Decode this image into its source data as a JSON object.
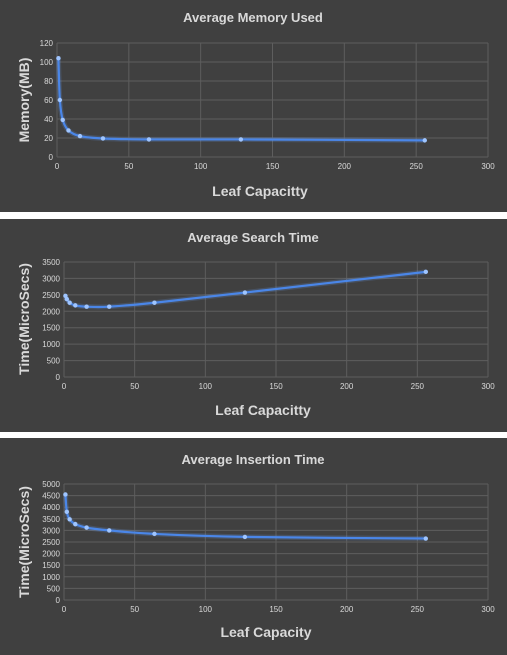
{
  "chart_data": [
    {
      "type": "line",
      "title": "Average Memory Used",
      "xlabel": "Leaf Capacitty",
      "ylabel": "Memory(MB)",
      "xlim": [
        0,
        300
      ],
      "ylim": [
        0,
        120
      ],
      "x_ticks": [
        "0",
        "50",
        "100",
        "150",
        "200",
        "250",
        "300"
      ],
      "y_ticks": [
        "0",
        "20",
        "40",
        "60",
        "80",
        "100",
        "120"
      ],
      "grid": true,
      "series": [
        {
          "x": [
            1,
            2,
            4,
            8,
            16,
            32,
            64,
            128,
            256
          ],
          "values": [
            104,
            60,
            39,
            28,
            22,
            19.5,
            18.5,
            18.5,
            17.5
          ]
        }
      ]
    },
    {
      "type": "line",
      "title": "Average Search Time",
      "xlabel": "Leaf Capacitty",
      "ylabel": "Time(MicroSecs)",
      "xlim": [
        0,
        300
      ],
      "ylim": [
        0,
        3500
      ],
      "x_ticks": [
        "0",
        "50",
        "100",
        "150",
        "200",
        "250",
        "300"
      ],
      "y_ticks": [
        "0",
        "500",
        "1000",
        "1500",
        "2000",
        "2500",
        "3000",
        "3500"
      ],
      "grid": true,
      "series": [
        {
          "x": [
            1,
            2,
            4,
            8,
            16,
            32,
            64,
            128,
            256
          ],
          "values": [
            2470,
            2370,
            2260,
            2180,
            2140,
            2140,
            2260,
            2570,
            3200
          ]
        }
      ]
    },
    {
      "type": "line",
      "title": "Average Insertion Time",
      "xlabel": "Leaf Capacity",
      "ylabel": "Time(MicroSecs)",
      "xlim": [
        0,
        300
      ],
      "ylim": [
        0,
        5000
      ],
      "x_ticks": [
        "0",
        "50",
        "100",
        "150",
        "200",
        "250",
        "300"
      ],
      "y_ticks": [
        "0",
        "500",
        "1000",
        "1500",
        "2000",
        "2500",
        "3000",
        "3500",
        "4000",
        "4500",
        "5000"
      ],
      "grid": true,
      "series": [
        {
          "x": [
            1,
            2,
            4,
            8,
            16,
            32,
            64,
            128,
            256
          ],
          "values": [
            4550,
            3800,
            3480,
            3270,
            3120,
            3000,
            2850,
            2720,
            2650
          ]
        }
      ]
    }
  ]
}
